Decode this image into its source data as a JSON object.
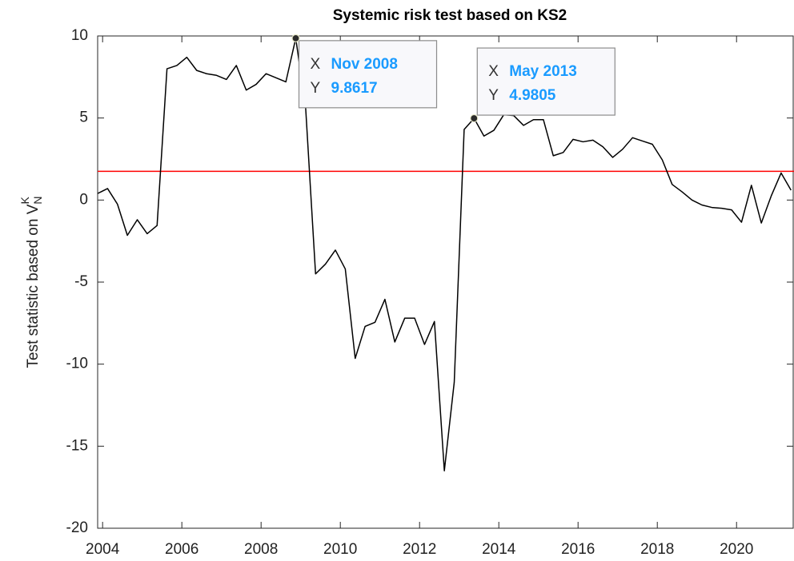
{
  "chart_data": {
    "type": "line",
    "title": "Systemic risk test based on KS2",
    "ylabel": {
      "text": "Test statistic based on V",
      "sup": "K",
      "sub": "N"
    },
    "x": [
      2003.875,
      2004.125,
      2004.375,
      2004.625,
      2004.875,
      2005.125,
      2005.375,
      2005.625,
      2005.875,
      2006.125,
      2006.375,
      2006.625,
      2006.875,
      2007.125,
      2007.375,
      2007.625,
      2007.875,
      2008.125,
      2008.375,
      2008.625,
      2008.875,
      2009.125,
      2009.375,
      2009.625,
      2009.875,
      2010.125,
      2010.375,
      2010.625,
      2010.875,
      2011.125,
      2011.375,
      2011.625,
      2011.875,
      2012.125,
      2012.375,
      2012.625,
      2012.875,
      2013.125,
      2013.375,
      2013.625,
      2013.875,
      2014.125,
      2014.375,
      2014.625,
      2014.875,
      2015.125,
      2015.375,
      2015.625,
      2015.875,
      2016.125,
      2016.375,
      2016.625,
      2016.875,
      2017.125,
      2017.375,
      2017.625,
      2017.875,
      2018.125,
      2018.375,
      2018.625,
      2018.875,
      2019.125,
      2019.375,
      2019.625,
      2019.875,
      2020.125,
      2020.375,
      2020.625,
      2020.875,
      2021.125,
      2021.375
    ],
    "series": [
      {
        "color": "#000000",
        "values": [
          0.4,
          0.7,
          -0.25,
          -2.15,
          -1.2,
          -2.05,
          -1.55,
          8.0,
          8.2,
          8.7,
          7.9,
          7.7,
          7.6,
          7.35,
          8.2,
          6.7,
          7.05,
          7.7,
          7.45,
          7.2,
          9.8617,
          5.6,
          -4.5,
          -3.9,
          -3.05,
          -4.2,
          -9.65,
          -7.7,
          -7.45,
          -6.05,
          -8.65,
          -7.2,
          -7.2,
          -8.8,
          -7.4,
          -16.5,
          -11.1,
          4.3,
          4.9805,
          3.9,
          4.25,
          5.2,
          5.15,
          4.55,
          4.9,
          4.9,
          2.7,
          2.9,
          3.7,
          3.55,
          3.65,
          3.25,
          2.6,
          3.1,
          3.8,
          3.6,
          3.4,
          2.45,
          0.95,
          0.5,
          0.0,
          -0.3,
          -0.45,
          -0.5,
          -0.6,
          -1.35,
          0.9,
          -1.4,
          0.25,
          1.65,
          0.6
        ]
      }
    ],
    "hline": {
      "value": 1.75,
      "color": "#ff0000"
    },
    "annotations": [
      {
        "x_key": "X",
        "x": "Nov 2008",
        "y_key": "Y",
        "y": "9.8617"
      },
      {
        "x_key": "X",
        "x": "May 2013",
        "y_key": "Y",
        "y": "4.9805"
      }
    ],
    "xlim": [
      2003.875,
      2021.45
    ],
    "xticks": [
      2004,
      2006,
      2008,
      2010,
      2012,
      2014,
      2016,
      2018,
      2020
    ],
    "ylim": [
      -20,
      10
    ],
    "yticks": [
      -20,
      -15,
      -10,
      -5,
      0,
      5,
      10
    ]
  }
}
